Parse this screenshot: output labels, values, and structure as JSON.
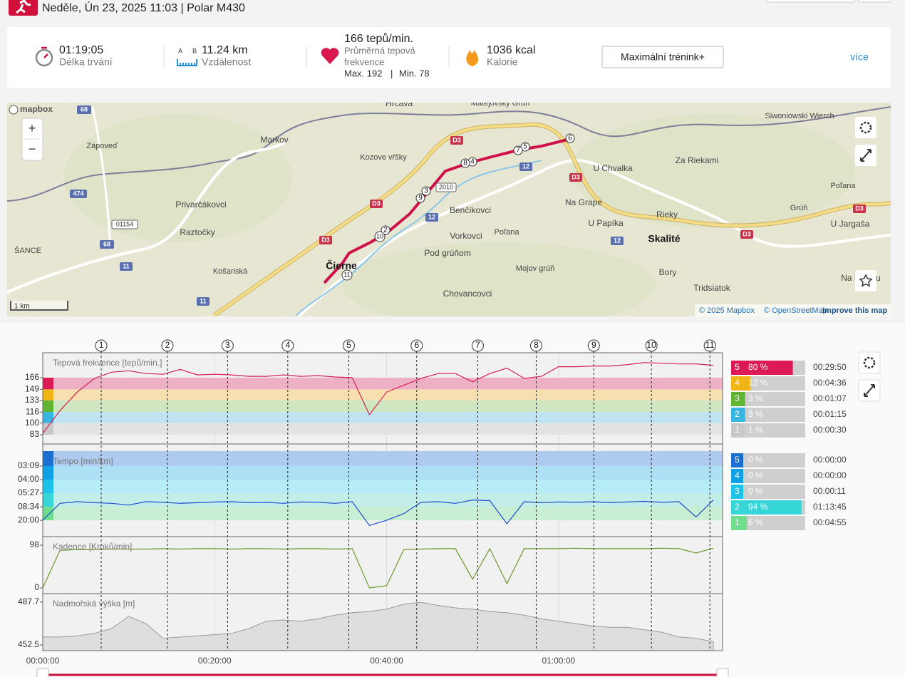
{
  "header": {
    "title": "Neděle, Ún 23, 2025 11:03 | Polar M430"
  },
  "summary": {
    "duration": "01:19:05",
    "duration_label": "Délka trvání",
    "ab": [
      "A",
      "B"
    ],
    "distance": "11.24 km",
    "distance_label": "Vzdálenost",
    "hr_avg": "166 tepů/min.",
    "hr_avg_label": [
      "Průměrná tepová",
      "frekvence"
    ],
    "hr_max": "Max. 192",
    "separator": "|",
    "hr_min": "Min. 78",
    "calories": "1036 kcal",
    "calories_label": "Kalorie",
    "button": "Maximální trénink+",
    "more": "více"
  },
  "map": {
    "places": [
      "Hrčava",
      "Matejovský Grúň",
      "Siwoniowski Wierch",
      "Zápoveď",
      "Markov",
      "Kozove vŕšky",
      "Za Riekami",
      "U Chvalka",
      "Privarčákovci",
      "Raztočky",
      "Benčíkovci",
      "Na Grape",
      "U Papíka",
      "Rieky",
      "Skalité",
      "U Jargaša",
      "Vorkovci",
      "Poľana",
      "ŠANCE",
      "Pod grúňom",
      "Košariská",
      "Čierne",
      "Mojov grúň",
      "Bory",
      "Na Poľsku",
      "Chovancovci",
      "Tridsiatok",
      "Grúň",
      "Poľana"
    ],
    "roads": [
      "68",
      "68",
      "474",
      "01154",
      "11",
      "11",
      "D3",
      "D3",
      "D3",
      "D3",
      "D3",
      "D3",
      "12",
      "12",
      "12",
      "2010"
    ],
    "lap_markers": [
      2,
      3,
      4,
      5,
      6,
      7,
      8,
      9,
      10,
      11
    ],
    "zoom": [
      "+",
      "−"
    ],
    "logo": "mapbox",
    "scale": "1 km",
    "attribution": [
      "© 2025 Mapbox",
      "© OpenStreetMap",
      "Improve this map"
    ]
  },
  "charts": {
    "time_lim": [
      0,
      79.08
    ],
    "time_ticks": [
      {
        "value": 0,
        "label": "00:00:00"
      },
      {
        "value": 20,
        "label": "00:20:00"
      },
      {
        "value": 40,
        "label": "00:40:00"
      },
      {
        "value": 60,
        "label": "01:00:00"
      }
    ],
    "laps": {
      "labels": [
        1,
        2,
        3,
        4,
        5,
        6,
        7,
        8,
        9,
        10,
        11
      ],
      "times": [
        6.8,
        14.5,
        21.5,
        28.5,
        35.6,
        43.5,
        50.6,
        57.4,
        64.1,
        70.8,
        77.6
      ]
    },
    "time": [
      0,
      2,
      4,
      6,
      8,
      10,
      12,
      14,
      16,
      18,
      20,
      22,
      24,
      26,
      28,
      30,
      32,
      34,
      36,
      38,
      40,
      42,
      44,
      46,
      48,
      50,
      52,
      54,
      56,
      58,
      60,
      62,
      64,
      66,
      68,
      70,
      72,
      74,
      76,
      78
    ],
    "heart_rate": {
      "label": "Tepová frekvence [tepů/min.]",
      "color": "#d41f4f",
      "ylim": [
        69.5,
        202.3
      ],
      "yticks": [
        166,
        149,
        133,
        116,
        100,
        83
      ],
      "zone_colors": [
        "#dc1a55",
        "#f2b516",
        "#5fb531",
        "#38b6e3",
        "#c8c8c8"
      ],
      "band_colors": [
        "#eeb0c4",
        "#f7e0b0",
        "#cfe6c0",
        "#bfe3f1",
        "#e3e3e3"
      ],
      "values": [
        85,
        118,
        145,
        165,
        174,
        176,
        172,
        171,
        178,
        170,
        171,
        170,
        168,
        168,
        170,
        168,
        169,
        167,
        166,
        112,
        145,
        155,
        165,
        172,
        172,
        160,
        172,
        180,
        165,
        168,
        182,
        182,
        183,
        183,
        185,
        188,
        187,
        186,
        186,
        184
      ]
    },
    "pace": {
      "label": "Tempo [min/km]",
      "color": "#1f4fd0",
      "ylim": [
        -1.8,
        23.4
      ],
      "yticks": [
        {
          "value": 19,
          "label": "03:09"
        },
        {
          "value": 15,
          "label": "04:00"
        },
        {
          "value": 11,
          "label": "05:27"
        },
        {
          "value": 7,
          "label": "08:34"
        },
        {
          "value": 3,
          "label": "20:00"
        }
      ],
      "zone_colors": [
        "#1b6fd3",
        "#0fa0e6",
        "#1cc3e8",
        "#35d5d8",
        "#6fdd8c"
      ],
      "band_colors": [
        "#aecbef",
        "#ade0f4",
        "#b6ecf5",
        "#c3ede9",
        "#c8efd3"
      ],
      "values": [
        3,
        8,
        8.5,
        8.2,
        8,
        7.5,
        8.5,
        8.3,
        8,
        8.2,
        8.4,
        8.5,
        8.2,
        8.3,
        8,
        8.4,
        8.3,
        8,
        8.5,
        1.5,
        3,
        5,
        8.3,
        8.5,
        8,
        9,
        8.8,
        2,
        8.5,
        8.2,
        8.4,
        8.3,
        8.5,
        8.2,
        8.4,
        8.6,
        8.3,
        8.5,
        4,
        9
      ]
    },
    "cadence": {
      "label": "Kadence [Kroků/min]",
      "color": "#6a9a2a",
      "ylim": [
        -13,
        117.6
      ],
      "yticks": [
        98,
        0
      ],
      "values": [
        0,
        86,
        88,
        88,
        89,
        89,
        89,
        90,
        89,
        90,
        90,
        89,
        90,
        90,
        89,
        90,
        90,
        89,
        90,
        0,
        5,
        88,
        89,
        90,
        90,
        20,
        90,
        10,
        90,
        90,
        90,
        91,
        90,
        90,
        90,
        90,
        91,
        90,
        80,
        91
      ]
    },
    "elevation": {
      "label": "Nadmořská výška [m]",
      "color": "#999999",
      "ylim": [
        447.8,
        494.7
      ],
      "yticks": [
        487.7,
        452.5
      ],
      "values": [
        459,
        459,
        460,
        462,
        466,
        476,
        470,
        458,
        459,
        460,
        461,
        462,
        466,
        472,
        473,
        472,
        474,
        477,
        479,
        480,
        482,
        486,
        487.5,
        485,
        483,
        482,
        480,
        479,
        477,
        474,
        472,
        470,
        468,
        467,
        467,
        465,
        463,
        459,
        458,
        455
      ]
    },
    "hr_zones": [
      {
        "zone": 5,
        "percent": 80,
        "percent_label": "80 %",
        "time": "00:29:50",
        "color": "#dc1a55"
      },
      {
        "zone": 4,
        "percent": 12,
        "percent_label": "12 %",
        "time": "00:04:36",
        "color": "#f2b516"
      },
      {
        "zone": 3,
        "percent": 3,
        "percent_label": "3 %",
        "time": "00:01:07",
        "color": "#5fb531"
      },
      {
        "zone": 2,
        "percent": 3,
        "percent_label": "3 %",
        "time": "00:01:15",
        "color": "#38b6e3"
      },
      {
        "zone": 1,
        "percent": 1,
        "percent_label": "1 %",
        "time": "00:00:30",
        "color": "#c8c8c8"
      }
    ],
    "pace_zones": [
      {
        "zone": 5,
        "percent": 0,
        "percent_label": "0 %",
        "time": "00:00:00",
        "color": "#1b6fd3"
      },
      {
        "zone": 4,
        "percent": 0,
        "percent_label": "0 %",
        "time": "00:00:00",
        "color": "#0fa0e6"
      },
      {
        "zone": 3,
        "percent": 0,
        "percent_label": "0 %",
        "time": "00:00:11",
        "color": "#1cc3e8"
      },
      {
        "zone": 2,
        "percent": 94,
        "percent_label": "94 %",
        "time": "01:13:45",
        "color": "#35d5d8"
      },
      {
        "zone": 1,
        "percent": 6,
        "percent_label": "6 %",
        "time": "00:04:55",
        "color": "#6fdd8c"
      }
    ]
  }
}
